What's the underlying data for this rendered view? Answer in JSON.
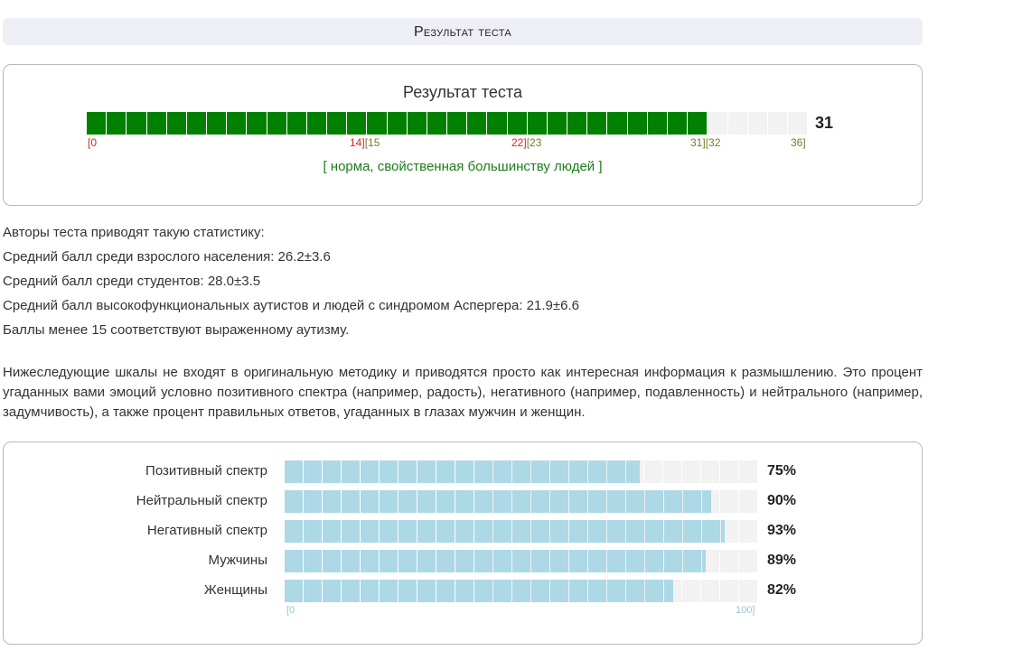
{
  "header": {
    "title": "Результат теста"
  },
  "result": {
    "title": "Результат теста",
    "score": 31,
    "max": 36,
    "score_label": "31",
    "colors": {
      "filled": "#018001",
      "empty": "#f2f2f2"
    },
    "ticks": {
      "t0": "[0",
      "t14": "14]",
      "t15": "[15",
      "t22": "22]",
      "t23": "[23",
      "t31": "31]",
      "t32": "[32",
      "t36": "36]"
    },
    "verdict": "[ норма, свойственная большинству людей ]"
  },
  "stats": {
    "intro": "Авторы теста приводят такую статистику:",
    "adult": "Средний балл среди взрослого населения: 26.2±3.6",
    "students": "Средний балл среди студентов: 28.0±3.5",
    "autists": "Средний балл высокофункциональных аутистов и людей с синдромом Аспергера: 21.9±6.6",
    "low": "Баллы менее 15 соответствуют выраженному аутизму."
  },
  "note": "Нижеследующие шкалы не входят в оригинальную методику и приводятся просто как интересная информация к размышлению. Это процент угаданных вами эмоций условно позитивного спектра (например, радость), негативного (например, подавленность) и нейтрального (например, задумчивость), а также процент правильных ответов, угаданных в глазах мужчин и женщин.",
  "scales": {
    "fill_color": "#add8e6",
    "rows": [
      {
        "label": "Позитивный спектр",
        "value": 75,
        "pct": "75%"
      },
      {
        "label": "Нейтральный спектр",
        "value": 90,
        "pct": "90%"
      },
      {
        "label": "Негативный спектр",
        "value": 93,
        "pct": "93%"
      },
      {
        "label": "Мужчины",
        "value": 89,
        "pct": "89%"
      },
      {
        "label": "Женщины",
        "value": 82,
        "pct": "82%"
      }
    ],
    "min_label": "[0",
    "max_label": "100]"
  }
}
